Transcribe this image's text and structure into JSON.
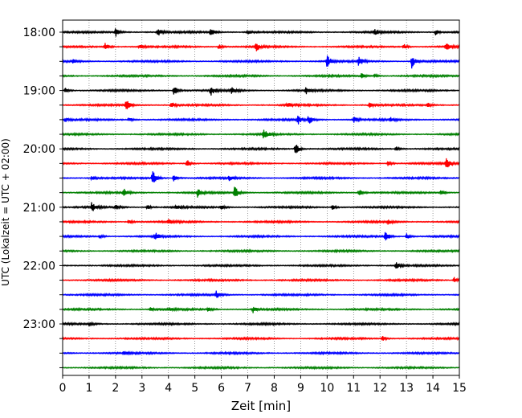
{
  "chart_data": {
    "type": "line",
    "chart_kind": "helicorder",
    "xlabel": "Zeit  [min]",
    "ylabel": "UTC (Lokalzeit = UTC + 02:00)",
    "xlim": [
      0,
      15
    ],
    "x_ticks": [
      0,
      1,
      2,
      3,
      4,
      5,
      6,
      7,
      8,
      9,
      10,
      11,
      12,
      13,
      14,
      15
    ],
    "x_grid": "dotted vertical",
    "trace_interval_min": 15,
    "start_time": "18:00",
    "y_tick_labels": [
      "18:00",
      "19:00",
      "20:00",
      "21:00",
      "22:00",
      "23:00"
    ],
    "trace_colors": [
      "#000000",
      "#ff0000",
      "#0000ff",
      "#008000"
    ],
    "rows": [
      {
        "events": [
          [
            2.0,
            0.6
          ],
          [
            3.6,
            0.55
          ],
          [
            5.6,
            0.75
          ],
          [
            7.0,
            0.3
          ],
          [
            11.8,
            0.35
          ],
          [
            14.1,
            0.4
          ]
        ]
      },
      {
        "events": [
          [
            1.6,
            0.7
          ],
          [
            2.9,
            0.35
          ],
          [
            5.9,
            0.35
          ],
          [
            7.3,
            0.7
          ],
          [
            12.9,
            0.35
          ],
          [
            14.5,
            0.5
          ]
        ]
      },
      {
        "events": [
          [
            0.4,
            0.25
          ],
          [
            10.0,
            0.9
          ],
          [
            11.2,
            0.7
          ],
          [
            13.2,
            1.0
          ]
        ]
      },
      {
        "events": [
          [
            11.3,
            0.35
          ],
          [
            11.8,
            0.25
          ]
        ]
      },
      {
        "events": [
          [
            0.1,
            0.35
          ],
          [
            4.2,
            0.75
          ],
          [
            5.6,
            0.7
          ],
          [
            6.4,
            0.55
          ],
          [
            9.2,
            0.45
          ]
        ]
      },
      {
        "events": [
          [
            2.4,
            0.8
          ],
          [
            4.1,
            0.5
          ],
          [
            8.5,
            0.35
          ],
          [
            11.6,
            0.35
          ],
          [
            13.8,
            0.3
          ]
        ]
      },
      {
        "events": [
          [
            0.1,
            0.3
          ],
          [
            2.5,
            0.3
          ],
          [
            8.9,
            0.65
          ],
          [
            9.3,
            0.65
          ],
          [
            11.0,
            0.5
          ],
          [
            12.4,
            0.3
          ]
        ]
      },
      {
        "events": [
          [
            7.6,
            0.7
          ]
        ]
      },
      {
        "events": [
          [
            8.8,
            0.8
          ],
          [
            12.6,
            0.3
          ]
        ]
      },
      {
        "events": [
          [
            4.7,
            0.55
          ],
          [
            12.3,
            0.35
          ],
          [
            14.5,
            1.0
          ]
        ]
      },
      {
        "events": [
          [
            1.1,
            0.3
          ],
          [
            3.4,
            1.2
          ],
          [
            4.2,
            0.45
          ],
          [
            6.3,
            0.3
          ]
        ]
      },
      {
        "events": [
          [
            2.3,
            0.55
          ],
          [
            5.1,
            0.6
          ],
          [
            6.5,
            0.9
          ],
          [
            11.2,
            0.45
          ],
          [
            14.3,
            0.45
          ]
        ]
      },
      {
        "events": [
          [
            1.1,
            0.7
          ],
          [
            2.0,
            0.35
          ],
          [
            3.2,
            0.3
          ],
          [
            4.3,
            0.35
          ],
          [
            6.0,
            0.4
          ],
          [
            10.2,
            0.3
          ]
        ]
      },
      {
        "events": [
          [
            2.5,
            0.3
          ],
          [
            4.0,
            0.4
          ],
          [
            12.3,
            0.35
          ]
        ]
      },
      {
        "events": [
          [
            1.4,
            0.3
          ],
          [
            3.5,
            0.55
          ],
          [
            12.2,
            0.75
          ],
          [
            13.0,
            0.4
          ]
        ]
      },
      {
        "events": []
      },
      {
        "events": [
          [
            12.6,
            0.45
          ]
        ]
      },
      {
        "events": [
          [
            14.8,
            0.4
          ]
        ]
      },
      {
        "events": [
          [
            5.8,
            0.5
          ]
        ]
      },
      {
        "events": [
          [
            3.3,
            0.25
          ],
          [
            4.0,
            0.25
          ],
          [
            5.5,
            0.3
          ],
          [
            7.2,
            0.45
          ]
        ]
      },
      {
        "events": [
          [
            1.0,
            0.25
          ]
        ]
      },
      {
        "events": [
          [
            12.1,
            0.3
          ]
        ]
      },
      {
        "events": [
          [
            2.3,
            0.25
          ]
        ]
      },
      {
        "events": []
      }
    ]
  }
}
